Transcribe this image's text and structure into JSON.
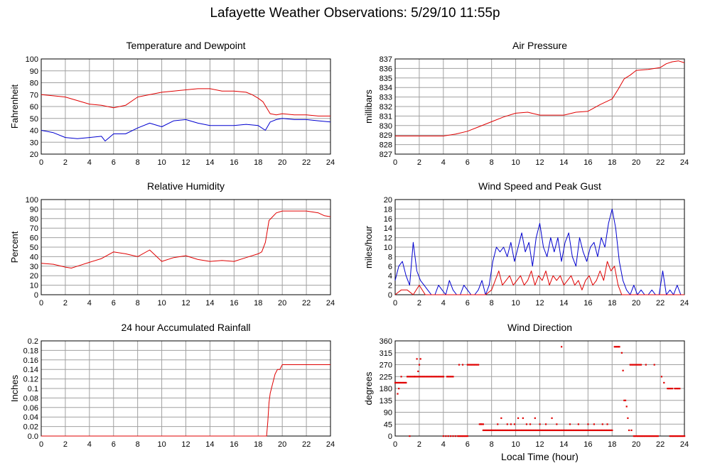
{
  "title": "Lafayette Weather Observations: 5/29/10 11:55p",
  "colors": {
    "red": "#e00000",
    "blue": "#0000d0",
    "grid": "#a0a0a0"
  },
  "chart_data": [
    {
      "id": "temp",
      "type": "line",
      "title": "Temperature and Dewpoint",
      "xlabel": "",
      "ylabel": "Fahrenheit",
      "xlim": [
        0,
        24
      ],
      "xticks": [
        0,
        2,
        4,
        6,
        8,
        10,
        12,
        14,
        16,
        18,
        20,
        22,
        24
      ],
      "ylim": [
        20,
        100
      ],
      "yticks": [
        20,
        30,
        40,
        50,
        60,
        70,
        80,
        90,
        100
      ],
      "grid": true,
      "series": [
        {
          "color": "red",
          "x": [
            0,
            1,
            2,
            3,
            4,
            5,
            6,
            7,
            8,
            9,
            10,
            11,
            12,
            13,
            14,
            15,
            16,
            17,
            17.5,
            18,
            18.4,
            18.7,
            19,
            19.5,
            20,
            21,
            22,
            23,
            24
          ],
          "y": [
            70,
            69,
            68,
            65,
            62,
            61,
            59,
            61,
            68,
            70,
            72,
            73,
            74,
            75,
            75,
            73,
            73,
            72,
            70,
            67,
            64,
            59,
            54,
            53,
            54,
            53,
            53,
            52,
            52
          ]
        },
        {
          "color": "blue",
          "x": [
            0,
            1,
            2,
            3,
            4,
            5,
            5.3,
            6,
            7,
            8,
            9,
            10,
            11,
            12,
            13,
            14,
            15,
            16,
            17,
            18,
            18.6,
            19,
            19.5,
            20,
            21,
            22,
            23,
            24
          ],
          "y": [
            40,
            38,
            34,
            33,
            34,
            35,
            31,
            37,
            37,
            42,
            46,
            43,
            48,
            49,
            46,
            44,
            44,
            44,
            45,
            44,
            40,
            47,
            49,
            50,
            49,
            49,
            48,
            47
          ]
        }
      ]
    },
    {
      "id": "pressure",
      "type": "line",
      "title": "Air Pressure",
      "xlabel": "",
      "ylabel": "millibars",
      "xlim": [
        0,
        24
      ],
      "xticks": [
        0,
        2,
        4,
        6,
        8,
        10,
        12,
        14,
        16,
        18,
        20,
        22,
        24
      ],
      "ylim": [
        827,
        837
      ],
      "yticks": [
        827,
        828,
        829,
        830,
        831,
        832,
        833,
        834,
        835,
        836,
        837
      ],
      "yticklabels": [
        "827",
        "828",
        "829",
        "830",
        "831",
        "832",
        "833",
        "834",
        "835",
        "836",
        "837"
      ],
      "grid": true,
      "series": [
        {
          "color": "red",
          "x": [
            0,
            2,
            4,
            5,
            6,
            7,
            8,
            9,
            10,
            11,
            12,
            13,
            14,
            15,
            16,
            17,
            18,
            18.5,
            19,
            19.5,
            20,
            21,
            22,
            22.5,
            23,
            23.5,
            24
          ],
          "y": [
            828.9,
            828.9,
            828.9,
            829.1,
            829.4,
            829.9,
            830.4,
            830.9,
            831.3,
            831.4,
            831.1,
            831.1,
            831.1,
            831.4,
            831.5,
            832.2,
            832.8,
            833.8,
            834.9,
            835.3,
            835.8,
            835.9,
            836.1,
            836.5,
            836.7,
            836.8,
            836.6
          ]
        }
      ]
    },
    {
      "id": "humidity",
      "type": "line",
      "title": "Relative Humidity",
      "xlabel": "",
      "ylabel": "Percent",
      "xlim": [
        0,
        24
      ],
      "xticks": [
        0,
        2,
        4,
        6,
        8,
        10,
        12,
        14,
        16,
        18,
        20,
        22,
        24
      ],
      "ylim": [
        0,
        100
      ],
      "yticks": [
        0,
        10,
        20,
        30,
        40,
        50,
        60,
        70,
        80,
        90,
        100
      ],
      "grid": true,
      "series": [
        {
          "color": "red",
          "x": [
            0,
            1,
            2,
            2.5,
            3,
            4,
            5,
            6,
            7,
            8,
            9,
            10,
            11,
            12,
            13,
            14,
            15,
            16,
            17,
            18,
            18.3,
            18.6,
            18.9,
            19.5,
            20,
            21,
            22,
            23,
            23.5,
            24
          ],
          "y": [
            33,
            32,
            29,
            28,
            30,
            34,
            38,
            45,
            43,
            40,
            47,
            35,
            39,
            41,
            37,
            35,
            36,
            35,
            39,
            43,
            45,
            55,
            78,
            86,
            88,
            88,
            88,
            86,
            83,
            82
          ]
        }
      ]
    },
    {
      "id": "wind",
      "type": "line",
      "title": "Wind Speed and Peak Gust",
      "xlabel": "",
      "ylabel": "miles/hour",
      "xlim": [
        0,
        24
      ],
      "xticks": [
        0,
        2,
        4,
        6,
        8,
        10,
        12,
        14,
        16,
        18,
        20,
        22,
        24
      ],
      "ylim": [
        0,
        20
      ],
      "yticks": [
        0,
        2,
        4,
        6,
        8,
        10,
        12,
        14,
        16,
        18,
        20
      ],
      "grid": true,
      "series": [
        {
          "color": "blue",
          "x": [
            0,
            0.3,
            0.6,
            0.9,
            1.2,
            1.5,
            1.8,
            2.1,
            2.4,
            2.7,
            3.0,
            3.3,
            3.6,
            3.9,
            4.2,
            4.5,
            4.8,
            5.1,
            5.4,
            5.7,
            6.0,
            6.3,
            6.6,
            6.9,
            7.2,
            7.5,
            7.8,
            8.1,
            8.4,
            8.7,
            9.0,
            9.3,
            9.6,
            9.9,
            10.2,
            10.5,
            10.8,
            11.1,
            11.4,
            11.7,
            12.0,
            12.3,
            12.6,
            12.9,
            13.2,
            13.5,
            13.8,
            14.1,
            14.4,
            14.7,
            15.0,
            15.3,
            15.6,
            15.9,
            16.2,
            16.5,
            16.8,
            17.1,
            17.4,
            17.7,
            18.0,
            18.3,
            18.6,
            18.9,
            19.2,
            19.5,
            19.8,
            20.1,
            20.4,
            20.7,
            21.0,
            21.3,
            21.6,
            21.9,
            22.2,
            22.5,
            22.8,
            23.1,
            23.4,
            23.7,
            24
          ],
          "y": [
            3,
            6,
            7,
            4,
            2,
            11,
            5,
            3,
            2,
            1,
            0,
            0,
            2,
            1,
            0,
            3,
            1,
            0,
            0,
            2,
            1,
            0,
            0,
            1,
            3,
            0,
            2,
            7,
            10,
            9,
            10,
            8,
            11,
            7,
            10,
            13,
            9,
            11,
            6,
            12,
            15,
            10,
            8,
            12,
            9,
            12,
            7,
            11,
            13,
            8,
            6,
            12,
            9,
            7,
            10,
            11,
            8,
            12,
            10,
            15,
            18,
            14,
            7,
            3,
            1,
            0,
            2,
            0,
            1,
            0,
            0,
            1,
            0,
            0,
            5,
            0,
            1,
            0,
            2,
            0,
            0
          ]
        },
        {
          "color": "red",
          "x": [
            0,
            0.5,
            1.0,
            1.5,
            2.0,
            2.5,
            3.0,
            3.5,
            4.0,
            4.5,
            5.0,
            5.5,
            6.0,
            6.5,
            7.0,
            7.5,
            8.0,
            8.3,
            8.6,
            8.9,
            9.2,
            9.5,
            9.8,
            10.1,
            10.4,
            10.7,
            11.0,
            11.3,
            11.6,
            11.9,
            12.2,
            12.5,
            12.8,
            13.1,
            13.4,
            13.7,
            14.0,
            14.3,
            14.6,
            14.9,
            15.2,
            15.5,
            15.8,
            16.1,
            16.4,
            16.7,
            17.0,
            17.3,
            17.6,
            17.9,
            18.2,
            18.5,
            18.8,
            19.1,
            19.5,
            20,
            21,
            22,
            23,
            24
          ],
          "y": [
            0,
            1,
            1,
            0,
            2,
            0,
            0,
            0,
            0,
            0,
            0,
            0,
            0,
            0,
            0,
            0,
            1,
            3,
            5,
            2,
            3,
            4,
            2,
            3,
            4,
            2,
            3,
            5,
            2,
            4,
            3,
            5,
            2,
            4,
            3,
            4,
            2,
            3,
            4,
            2,
            3,
            1,
            3,
            4,
            2,
            3,
            5,
            3,
            7,
            5,
            6,
            2,
            0,
            0,
            0,
            0,
            0,
            0,
            0,
            0
          ]
        }
      ]
    },
    {
      "id": "rain",
      "type": "line",
      "title": "24 hour Accumulated Rainfall",
      "xlabel": "",
      "ylabel": "Inches",
      "xlim": [
        0,
        24
      ],
      "xticks": [
        0,
        2,
        4,
        6,
        8,
        10,
        12,
        14,
        16,
        18,
        20,
        22,
        24
      ],
      "ylim": [
        0,
        0.2
      ],
      "yticks": [
        0,
        0.02,
        0.04,
        0.06,
        0.08,
        0.1,
        0.12,
        0.14,
        0.16,
        0.18,
        0.2
      ],
      "yticklabels": [
        "0.0",
        "0.02",
        "0.04",
        "0.06",
        "0.08",
        "0.1",
        "0.12",
        "0.14",
        "0.16",
        "0.18",
        "0.2"
      ],
      "grid": true,
      "series": [
        {
          "color": "red",
          "x": [
            0,
            18.7,
            18.8,
            18.9,
            19.0,
            19.2,
            19.4,
            19.6,
            19.8,
            20.0,
            24
          ],
          "y": [
            0,
            0,
            0.03,
            0.07,
            0.09,
            0.11,
            0.13,
            0.14,
            0.14,
            0.15,
            0.15
          ]
        }
      ]
    },
    {
      "id": "direction",
      "type": "scatter",
      "title": "Wind Direction",
      "xlabel": "Local Time (hour)",
      "ylabel": "degrees",
      "xlim": [
        0,
        24
      ],
      "xticks": [
        0,
        2,
        4,
        6,
        8,
        10,
        12,
        14,
        16,
        18,
        20,
        22,
        24
      ],
      "ylim": [
        0,
        360
      ],
      "yticks": [
        0,
        45,
        90,
        135,
        180,
        225,
        270,
        315,
        360
      ],
      "grid": true,
      "series": [
        {
          "color": "red",
          "segments": [
            {
              "x0": 0.0,
              "x1": 0.9,
              "step": 0.1,
              "y": 202
            },
            {
              "x0": 1.0,
              "x1": 1.9,
              "step": 0.1,
              "y": 225
            },
            {
              "x0": 2.0,
              "x1": 4.0,
              "step": 0.1,
              "y": 225
            },
            {
              "x0": 4.0,
              "x1": 5.0,
              "step": 0.2,
              "y": 0
            },
            {
              "x0": 4.3,
              "x1": 4.8,
              "step": 0.1,
              "y": 225
            },
            {
              "x0": 5.2,
              "x1": 6.0,
              "step": 0.1,
              "y": 0
            },
            {
              "x0": 6.0,
              "x1": 6.9,
              "step": 0.1,
              "y": 270
            },
            {
              "x0": 7.0,
              "x1": 7.3,
              "step": 0.1,
              "y": 45
            },
            {
              "x0": 7.3,
              "x1": 18.0,
              "step": 0.1,
              "y": 22
            },
            {
              "x0": 18.2,
              "x1": 18.6,
              "step": 0.1,
              "y": 338
            },
            {
              "x0": 19.8,
              "x1": 21.8,
              "step": 0.1,
              "y": 0
            },
            {
              "x0": 19.5,
              "x1": 20.4,
              "step": 0.1,
              "y": 270
            },
            {
              "x0": 22.6,
              "x1": 23.0,
              "step": 0.1,
              "y": 180
            },
            {
              "x0": 23.2,
              "x1": 23.6,
              "step": 0.1,
              "y": 180
            },
            {
              "x0": 22.8,
              "x1": 24.0,
              "step": 0.1,
              "y": 0
            }
          ],
          "points": [
            [
              0.2,
              160
            ],
            [
              0.3,
              180
            ],
            [
              0.5,
              225
            ],
            [
              1.2,
              0
            ],
            [
              1.6,
              225
            ],
            [
              1.8,
              292
            ],
            [
              1.9,
              245
            ],
            [
              2.0,
              270
            ],
            [
              2.1,
              292
            ],
            [
              5.3,
              270
            ],
            [
              5.6,
              270
            ],
            [
              7.1,
              45
            ],
            [
              8.5,
              45
            ],
            [
              8.8,
              68
            ],
            [
              9.3,
              45
            ],
            [
              9.6,
              45
            ],
            [
              9.9,
              45
            ],
            [
              10.2,
              68
            ],
            [
              10.6,
              68
            ],
            [
              10.9,
              45
            ],
            [
              11.2,
              45
            ],
            [
              11.6,
              68
            ],
            [
              12.0,
              45
            ],
            [
              12.5,
              45
            ],
            [
              13.0,
              68
            ],
            [
              13.4,
              45
            ],
            [
              13.8,
              338
            ],
            [
              14.5,
              45
            ],
            [
              15.2,
              45
            ],
            [
              16.0,
              45
            ],
            [
              16.5,
              45
            ],
            [
              17.2,
              45
            ],
            [
              17.6,
              45
            ],
            [
              18.8,
              315
            ],
            [
              18.9,
              248
            ],
            [
              19.0,
              135
            ],
            [
              19.1,
              135
            ],
            [
              19.2,
              112
            ],
            [
              19.3,
              68
            ],
            [
              19.4,
              22
            ],
            [
              19.6,
              22
            ],
            [
              20.8,
              270
            ],
            [
              21.5,
              270
            ],
            [
              22.1,
              225
            ],
            [
              22.3,
              202
            ]
          ]
        }
      ]
    }
  ]
}
